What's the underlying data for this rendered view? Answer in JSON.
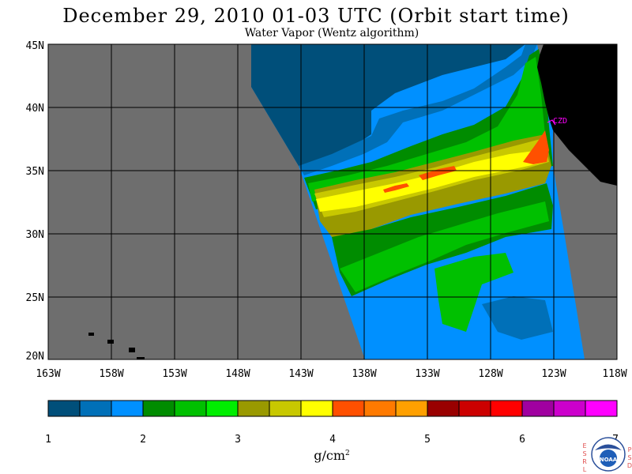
{
  "title": "December 29, 2010  01-03 UTC  (Orbit start time)",
  "subtitle": "Water Vapor (Wentz algorithm)",
  "station_label": "CZD",
  "lat_ticks": [
    "45N",
    "40N",
    "35N",
    "30N",
    "25N",
    "20N"
  ],
  "lon_ticks": [
    "163W",
    "158W",
    "153W",
    "148W",
    "143W",
    "138W",
    "133W",
    "128W",
    "123W",
    "118W"
  ],
  "colorbar": {
    "colors": [
      "#004f7a",
      "#0070b8",
      "#0090ff",
      "#008c00",
      "#00c000",
      "#00ee00",
      "#999900",
      "#c8c800",
      "#ffff00",
      "#ff5000",
      "#ff7a00",
      "#ffa000",
      "#990000",
      "#cc0000",
      "#ff0000",
      "#a000a0",
      "#cc00cc",
      "#ff00ff"
    ],
    "tick_labels": [
      "1",
      "2",
      "3",
      "4",
      "5",
      "6",
      "7"
    ],
    "units_base": "g/cm",
    "units_exp": "2"
  },
  "logo": {
    "left_letters": [
      "E",
      "S",
      "R",
      "L"
    ],
    "right_letters": [
      "P",
      "S",
      "D"
    ],
    "center_text": "NOAA"
  },
  "colors": {
    "land": "#000000",
    "nodata": "#6e6e6e",
    "station": "#ff00ff"
  }
}
